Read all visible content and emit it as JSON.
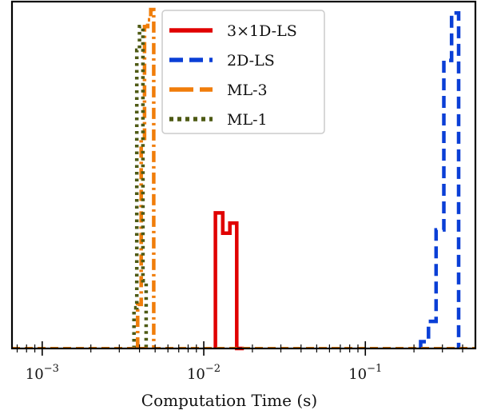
{
  "chart_data": {
    "type": "histogram",
    "title": "",
    "xlabel": "Computation Time (s)",
    "ylabel": "",
    "xscale": "log",
    "xlim": [
      0.00065,
      0.48
    ],
    "ylim": [
      0,
      1.0
    ],
    "grid": false,
    "legend_position": "top-center",
    "xticks": [
      {
        "value": 0.001,
        "base": "10",
        "exp": "−3"
      },
      {
        "value": 0.01,
        "base": "10",
        "exp": "−2"
      },
      {
        "value": 0.1,
        "base": "10",
        "exp": "−1"
      }
    ],
    "series": [
      {
        "name": "3×1D-LS",
        "color": "#e00000",
        "dash": "solid",
        "edges": [
          0.0118,
          0.0131,
          0.0145,
          0.016,
          0.0177
        ],
        "heights": [
          0.4,
          0.34,
          0.37,
          0.0
        ]
      },
      {
        "name": "2D-LS",
        "color": "#0a3fd6",
        "dash": "dashed",
        "edges": [
          0.22,
          0.246,
          0.274,
          0.306,
          0.342,
          0.378
        ],
        "heights": [
          0.02,
          0.08,
          0.35,
          0.85,
          0.99
        ]
      },
      {
        "name": "ML-3",
        "color": "#f07d0a",
        "dash": "dashdot",
        "edges": [
          0.0039,
          0.0041,
          0.0043,
          0.0045,
          0.0047,
          0.0049
        ],
        "heights": [
          0.13,
          0.62,
          0.95,
          0.97,
          1.0
        ]
      },
      {
        "name": "ML-1",
        "color": "#4e5a14",
        "dash": "dotted",
        "edges": [
          0.0037,
          0.00385,
          0.004,
          0.0042,
          0.0044
        ],
        "heights": [
          0.12,
          0.88,
          0.95,
          0.2
        ]
      }
    ]
  }
}
